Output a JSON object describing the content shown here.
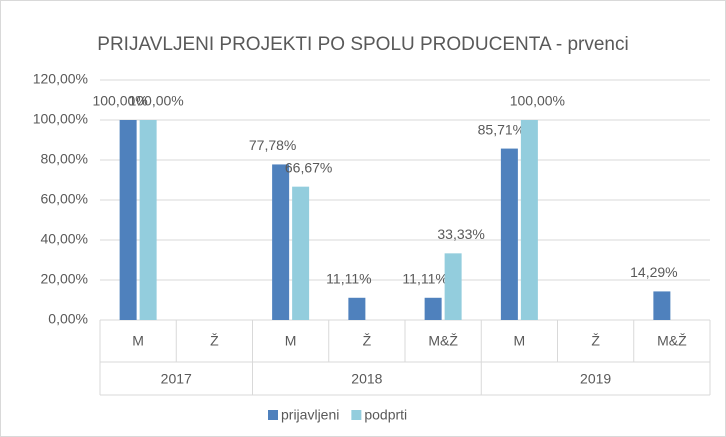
{
  "chart_data": {
    "type": "bar",
    "title": "PRIJAVLJENI PROJEKTI PO SPOLU PRODUCENTA - prvenci",
    "groups": [
      {
        "label": "2017",
        "categories": [
          "M",
          "Ž"
        ]
      },
      {
        "label": "2018",
        "categories": [
          "M",
          "Ž",
          "M&Ž"
        ]
      },
      {
        "label": "2019",
        "categories": [
          "M",
          "Ž",
          "M&Ž"
        ]
      }
    ],
    "series": [
      {
        "name": "prijavljeni",
        "color": "#4f81bd",
        "values": [
          100,
          null,
          77.78,
          11.11,
          11.11,
          85.71,
          null,
          14.29
        ],
        "value_labels": [
          "100,00%",
          null,
          "77,78%",
          "11,11%",
          "11,11%",
          "85,71%",
          null,
          "14,29%"
        ]
      },
      {
        "name": "podprti",
        "color": "#93cddd",
        "values": [
          100,
          null,
          66.67,
          null,
          33.33,
          100,
          null,
          null
        ],
        "value_labels": [
          "100,00%",
          null,
          "66,67%",
          null,
          "33,33%",
          "100,00%",
          null,
          null
        ]
      }
    ],
    "ylim": [
      0,
      120
    ],
    "yticks": [
      {
        "value": 0,
        "label": "0,00%"
      },
      {
        "value": 20,
        "label": "20,00%"
      },
      {
        "value": 40,
        "label": "40,00%"
      },
      {
        "value": 60,
        "label": "60,00%"
      },
      {
        "value": 80,
        "label": "80,00%"
      },
      {
        "value": 100,
        "label": "100,00%"
      },
      {
        "value": 120,
        "label": "120,00%"
      }
    ],
    "grid": true,
    "legend": "bottom"
  }
}
